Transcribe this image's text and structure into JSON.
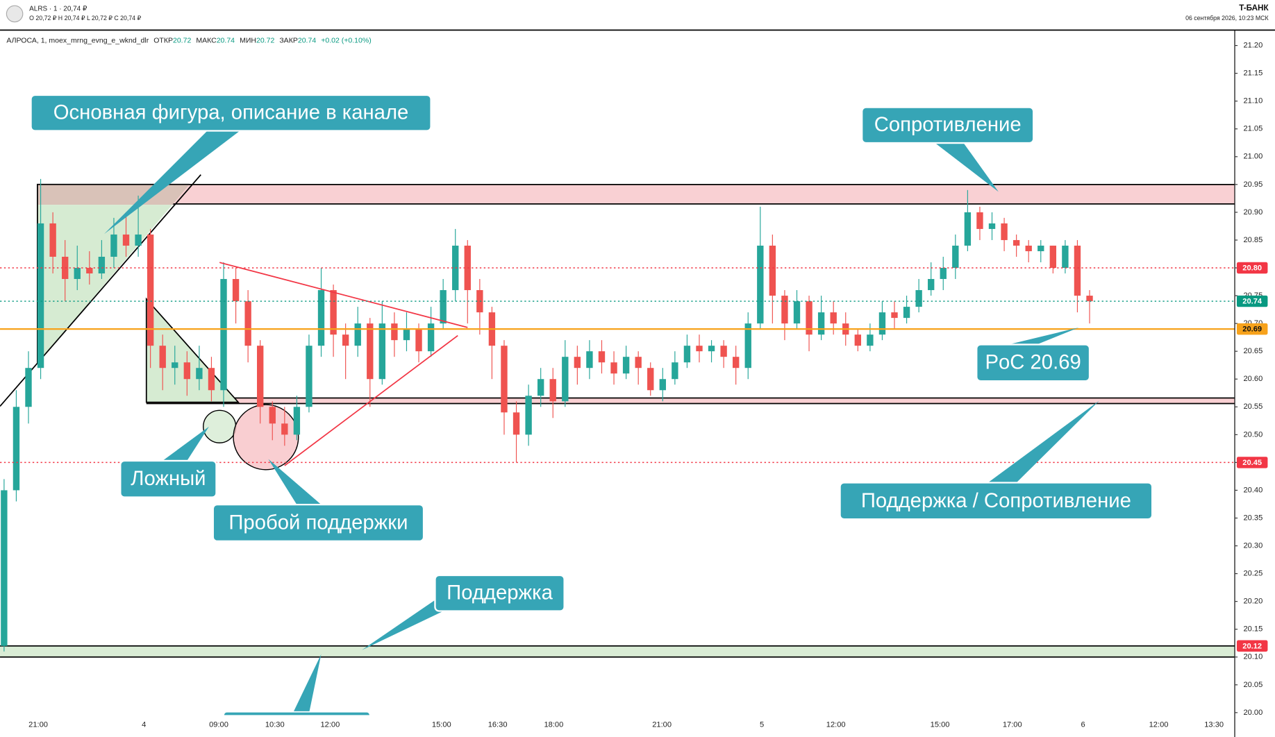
{
  "header": {
    "ticker": "ALRS · 1 · 20,74 ₽",
    "ohlc": "O 20,72 ₽  H 20,74 ₽  L 20,72 ₽  C 20,74 ₽",
    "brand": "T-БАНК",
    "date": "06 сентября 2026, 10:23 МСК"
  },
  "legend": {
    "symbol": "АЛРОСА, 1, moex_mrng_evng_e_wknd_dlr",
    "open_label": "ОТКР",
    "open": "20.72",
    "high_label": "МАКС",
    "high": "20.74",
    "low_label": "МИН",
    "low": "20.72",
    "close_label": "ЗАКР",
    "close": "20.74",
    "change": "+0.02 (+0.10%)"
  },
  "chart_data": {
    "type": "candlestick",
    "up_color": "#26a69a",
    "down_color": "#ef5350",
    "open": [
      20.12,
      20.4,
      20.55,
      20.62,
      20.88,
      20.82,
      20.78,
      20.8,
      20.79,
      20.82,
      20.86,
      20.84,
      20.86,
      20.66,
      20.62,
      20.63,
      20.6,
      20.62,
      20.58,
      20.78,
      20.74,
      20.66,
      20.55,
      20.52,
      20.5,
      20.55,
      20.66,
      20.76,
      20.68,
      20.66,
      20.7,
      20.6,
      20.7,
      20.67,
      20.69,
      20.65,
      20.7,
      20.76,
      20.84,
      20.76,
      20.72,
      20.66,
      20.54,
      20.5,
      20.57,
      20.6,
      20.56,
      20.64,
      20.62,
      20.65,
      20.63,
      20.61,
      20.64,
      20.62,
      20.58,
      20.6,
      20.63,
      20.66,
      20.65,
      20.66,
      20.64,
      20.62,
      20.7,
      20.84,
      20.75,
      20.7,
      20.74,
      20.68,
      20.72,
      20.7,
      20.68,
      20.66,
      20.68,
      20.72,
      20.71,
      20.73,
      20.76,
      20.78,
      20.8,
      20.84,
      20.9,
      20.87,
      20.88,
      20.85,
      20.84,
      20.83,
      20.84,
      20.8,
      20.84,
      20.75
    ],
    "high": [
      20.42,
      20.58,
      20.65,
      20.96,
      20.9,
      20.85,
      20.84,
      20.83,
      20.85,
      20.89,
      20.9,
      20.93,
      20.87,
      20.68,
      20.66,
      20.65,
      20.66,
      20.64,
      20.81,
      20.8,
      20.76,
      20.67,
      20.56,
      20.55,
      20.57,
      20.68,
      20.8,
      20.77,
      20.7,
      20.73,
      20.71,
      20.74,
      20.72,
      20.72,
      20.7,
      20.73,
      20.78,
      20.87,
      20.85,
      20.78,
      20.73,
      20.67,
      20.56,
      20.59,
      20.62,
      20.62,
      20.67,
      20.66,
      20.67,
      20.67,
      20.65,
      20.66,
      20.65,
      20.63,
      20.62,
      20.65,
      20.68,
      20.68,
      20.67,
      20.67,
      20.66,
      20.72,
      20.91,
      20.86,
      20.76,
      20.76,
      20.75,
      20.75,
      20.74,
      20.72,
      20.69,
      20.7,
      20.74,
      20.74,
      20.75,
      20.78,
      20.81,
      20.82,
      20.86,
      20.94,
      20.91,
      20.9,
      20.89,
      20.86,
      20.85,
      20.85,
      20.84,
      20.85,
      20.85,
      20.76
    ],
    "low": [
      20.11,
      20.38,
      20.52,
      20.6,
      20.79,
      20.74,
      20.76,
      20.77,
      20.78,
      20.8,
      20.82,
      20.82,
      20.62,
      20.58,
      20.59,
      20.57,
      20.58,
      20.56,
      20.55,
      20.7,
      20.63,
      20.52,
      20.49,
      20.48,
      20.49,
      20.54,
      20.64,
      20.64,
      20.6,
      20.64,
      20.55,
      20.59,
      20.64,
      20.65,
      20.63,
      20.64,
      20.69,
      20.74,
      20.7,
      20.68,
      20.6,
      20.5,
      20.45,
      20.48,
      20.55,
      20.53,
      20.55,
      20.59,
      20.6,
      20.61,
      20.59,
      20.6,
      20.59,
      20.57,
      20.56,
      20.59,
      20.62,
      20.63,
      20.63,
      20.62,
      20.59,
      20.6,
      20.69,
      20.7,
      20.67,
      20.69,
      20.65,
      20.67,
      20.68,
      20.66,
      20.65,
      20.65,
      20.67,
      20.69,
      20.7,
      20.72,
      20.75,
      20.76,
      20.78,
      20.83,
      20.85,
      20.85,
      20.83,
      20.82,
      20.81,
      20.81,
      20.79,
      20.79,
      20.72,
      20.7
    ],
    "close": [
      20.4,
      20.55,
      20.62,
      20.88,
      20.82,
      20.78,
      20.8,
      20.79,
      20.82,
      20.86,
      20.84,
      20.86,
      20.66,
      20.62,
      20.63,
      20.6,
      20.62,
      20.58,
      20.78,
      20.74,
      20.66,
      20.55,
      20.52,
      20.5,
      20.55,
      20.66,
      20.76,
      20.68,
      20.66,
      20.7,
      20.6,
      20.7,
      20.67,
      20.69,
      20.65,
      20.7,
      20.76,
      20.84,
      20.76,
      20.72,
      20.66,
      20.54,
      20.5,
      20.57,
      20.6,
      20.56,
      20.64,
      20.62,
      20.65,
      20.63,
      20.61,
      20.64,
      20.62,
      20.58,
      20.6,
      20.63,
      20.66,
      20.65,
      20.66,
      20.64,
      20.62,
      20.7,
      20.84,
      20.75,
      20.7,
      20.74,
      20.68,
      20.72,
      20.7,
      20.68,
      20.66,
      20.68,
      20.72,
      20.71,
      20.73,
      20.76,
      20.78,
      20.8,
      20.84,
      20.9,
      20.87,
      20.88,
      20.85,
      20.84,
      20.83,
      20.84,
      20.8,
      20.84,
      20.75,
      20.74
    ],
    "ylim": [
      20.0,
      21.2
    ],
    "yticks": [
      {
        "value": 20.0,
        "label": "20.00"
      },
      20.05,
      {
        "value": 20.1,
        "label": "20.10"
      },
      20.15,
      {
        "value": 20.2,
        "label": "20.20"
      },
      20.25,
      {
        "value": 20.3,
        "label": "20.30"
      },
      20.35,
      {
        "value": 20.4,
        "label": "20.40"
      },
      20.45,
      {
        "value": 20.5,
        "label": "20.50"
      },
      20.55,
      {
        "value": 20.6,
        "label": "20.60"
      },
      20.65,
      {
        "value": 20.7,
        "label": "20.70"
      },
      20.75,
      {
        "value": 20.8,
        "label": "20.80"
      },
      20.85,
      {
        "value": 20.9,
        "label": "20.90"
      },
      20.95,
      {
        "value": 21.0,
        "label": "21.00"
      },
      21.05,
      {
        "value": 21.1,
        "label": "21.10"
      },
      21.15,
      {
        "value": 21.2,
        "label": "21.20"
      }
    ],
    "x_tick_labels": [
      "21:00",
      "4",
      "09:00",
      "10:30",
      "12:00",
      "15:00",
      "16:30",
      "18:00",
      "21:00",
      "5",
      "12:00",
      "15:00",
      "17:00",
      "6",
      "12:00",
      "13:30"
    ],
    "zones": [
      {
        "from": 20.915,
        "to": 20.95,
        "color": "#f9d0d3"
      },
      {
        "from": 20.556,
        "to": 20.566,
        "color": "#f9d0d3"
      },
      {
        "from": 20.1,
        "to": 20.12,
        "color": "#d9ecd5"
      }
    ],
    "price_lines": [
      {
        "value": 20.8,
        "label": "20.80",
        "color": "#f23645",
        "style": "dotted"
      },
      {
        "value": 20.74,
        "label": "20.74",
        "color": "#089981",
        "style": "dotted"
      },
      {
        "value": 20.69,
        "label": "20.69",
        "color": "#f7a21b",
        "style": "solid"
      },
      {
        "value": 20.45,
        "label": "20.45",
        "color": "#f23645",
        "style": "dotted"
      },
      {
        "value": 20.12,
        "label": "20.12",
        "color": "#f23645",
        "style": "none"
      }
    ],
    "annotations": [
      "Основная фигура, описание в канале",
      "Сопротивление",
      "Ложный",
      "Пробой поддержки",
      "PoC 20.69",
      "Поддержка / Сопротивление",
      "Поддержка"
    ]
  }
}
